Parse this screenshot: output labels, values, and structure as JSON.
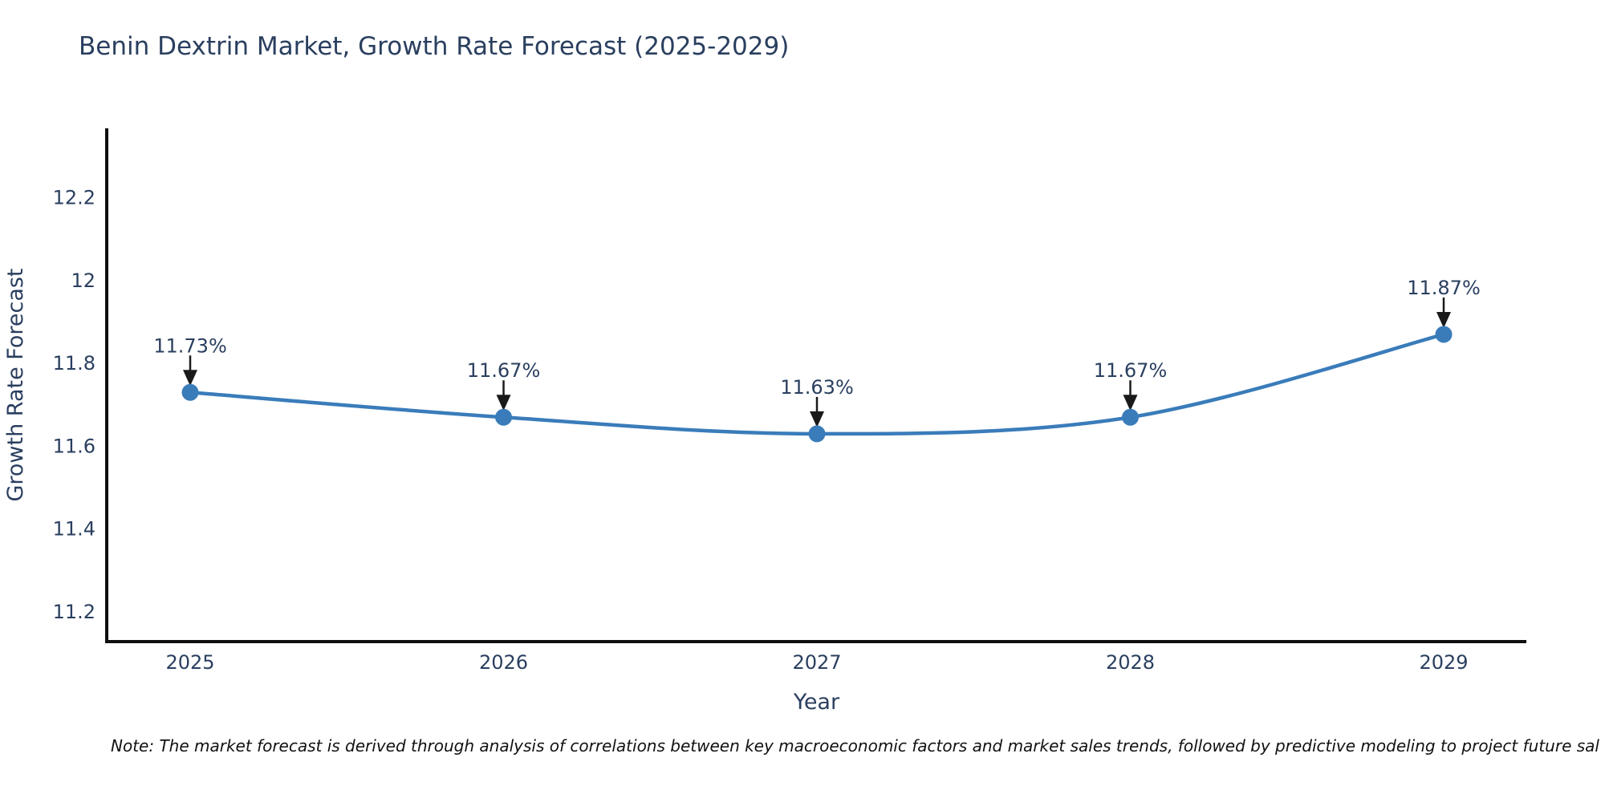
{
  "title": "Benin Dextrin Market, Growth Rate Forecast (2025-2029)",
  "note": "Note: The market forecast is derived through analysis of correlations between key macroeconomic factors and market sales trends, followed by predictive modeling to project future sal",
  "colors": {
    "title": "#2a3f5f",
    "tick": "#2a3f5f",
    "axis_line": "#0f0f0f",
    "series_line": "#3a7cba",
    "marker": "#3a7cba",
    "annotation_text": "#2a3f5f",
    "annotation_arrow": "#1a1a1a",
    "background": "#ffffff"
  },
  "chart_data": {
    "type": "line",
    "title": "Benin Dextrin Market, Growth Rate Forecast (2025-2029)",
    "xlabel": "Year",
    "ylabel": "Growth Rate Forecast",
    "categories": [
      "2025",
      "2026",
      "2027",
      "2028",
      "2029"
    ],
    "series": [
      {
        "name": "Growth Rate Forecast",
        "values": [
          11.73,
          11.67,
          11.63,
          11.67,
          11.87
        ],
        "point_labels": [
          "11.73%",
          "11.67%",
          "11.63%",
          "11.67%",
          "11.87%"
        ]
      }
    ],
    "yticks": [
      11.2,
      11.4,
      11.6,
      11.8,
      12,
      12.2
    ],
    "ytick_labels": [
      "11.2",
      "11.4",
      "11.6",
      "11.8",
      "12",
      "12.2"
    ],
    "ylim": [
      11.13,
      12.37
    ],
    "grid": false,
    "legend": false,
    "line_shape": "spline",
    "markers": true,
    "annotations": "value labels with downward arrows above each point"
  }
}
